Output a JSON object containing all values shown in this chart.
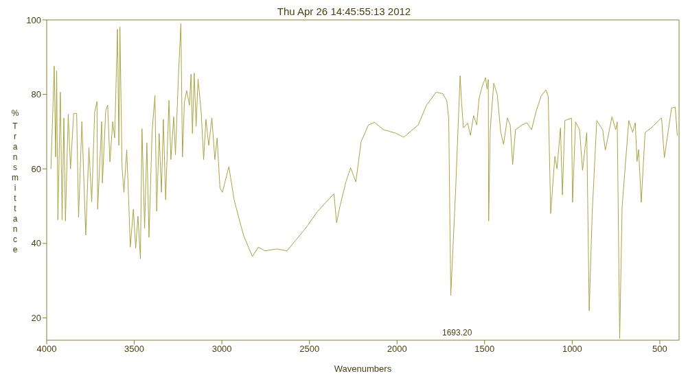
{
  "chart_data": {
    "type": "line",
    "title": "Thu Apr 26 14:45:55:13 2012",
    "xlabel": "Wavenumbers",
    "ylabel": "% Transmittance",
    "x": [
      3976,
      3967,
      3957,
      3949,
      3943,
      3936,
      3922,
      3912,
      3902,
      3893,
      3877,
      3864,
      3846,
      3829,
      3818,
      3799,
      3777,
      3759,
      3743,
      3726,
      3713,
      3709,
      3686,
      3682,
      3663,
      3652,
      3639,
      3623,
      3612,
      3596,
      3588,
      3582,
      3570,
      3559,
      3543,
      3532,
      3523,
      3505,
      3492,
      3479,
      3465,
      3456,
      3441,
      3428,
      3416,
      3398,
      3382,
      3372,
      3358,
      3345,
      3334,
      3321,
      3302,
      3291,
      3275,
      3265,
      3247,
      3234,
      3225,
      3214,
      3201,
      3185,
      3176,
      3168,
      3158,
      3147,
      3136,
      3118,
      3104,
      3091,
      3075,
      3057,
      3040,
      3027,
      3011,
      2997,
      2960,
      2930,
      2902,
      2875,
      2826,
      2792,
      2754,
      2686,
      2629,
      2576,
      2523,
      2455,
      2387,
      2360,
      2345,
      2326,
      2292,
      2265,
      2235,
      2205,
      2163,
      2129,
      2076,
      2008,
      1962,
      1879,
      1833,
      1777,
      1739,
      1716,
      1705,
      1693.2,
      1665,
      1640,
      1631,
      1621,
      1597,
      1581,
      1563,
      1545,
      1532,
      1515,
      1495,
      1486,
      1479,
      1477,
      1468,
      1448,
      1428,
      1408,
      1392,
      1370,
      1354,
      1340,
      1324,
      1286,
      1259,
      1232,
      1205,
      1178,
      1150,
      1137,
      1123,
      1099,
      1087,
      1067,
      1056,
      1042,
      1004,
      998,
      981,
      958,
      941,
      917,
      903,
      886,
      860,
      826,
      811,
      773,
      752,
      743,
      729,
      715,
      677,
      655,
      640,
      630,
      621,
      606,
      584,
      549,
      490,
      474,
      433,
      412,
      400
    ],
    "series": [
      {
        "color": "#a9a444",
        "values": [
          60,
          72.7,
          87.6,
          63.2,
          86.3,
          46.3,
          80.6,
          46.3,
          73.7,
          46,
          74.6,
          60,
          74.9,
          74.9,
          47,
          72.7,
          42.2,
          65.7,
          51.1,
          75.2,
          78.1,
          49.2,
          72.7,
          56.2,
          75.6,
          77.1,
          61.9,
          72.7,
          68.3,
          97.5,
          66.3,
          98.1,
          60.6,
          53.7,
          65.1,
          51.7,
          39,
          49.2,
          38.7,
          47.3,
          35.9,
          70.8,
          44.1,
          67,
          41.6,
          70.2,
          79.7,
          48.6,
          69.5,
          53.7,
          73.3,
          51.7,
          78.4,
          62.5,
          74,
          63.8,
          86,
          99,
          63.2,
          77.8,
          81,
          77.1,
          85.4,
          69.5,
          85.7,
          71.4,
          84.1,
          75.2,
          62.5,
          73.3,
          66.3,
          73.7,
          62.5,
          68.3,
          54.9,
          53.7,
          60.6,
          51.7,
          46.6,
          42,
          36.5,
          39,
          38,
          38.5,
          38,
          41,
          44,
          48.5,
          52,
          53.3,
          45.5,
          50,
          56.5,
          60.3,
          56.5,
          67.3,
          71.8,
          72.5,
          70.5,
          69.6,
          68.5,
          71.8,
          77,
          80.6,
          80.2,
          78.3,
          73.5,
          26,
          55,
          85,
          77.5,
          71,
          72.3,
          69,
          74.3,
          71.8,
          78.8,
          82,
          84.5,
          81.4,
          84,
          46,
          70.5,
          83,
          80,
          69.8,
          66.6,
          73.7,
          71.8,
          61.2,
          70.5,
          71.8,
          72.4,
          70.5,
          75.6,
          79.5,
          81.2,
          79.5,
          48,
          63.4,
          60,
          71,
          53,
          73,
          73.6,
          51,
          72.6,
          70.5,
          59.6,
          69.8,
          21.9,
          48,
          73,
          70.5,
          65,
          74,
          70.5,
          72.6,
          14.5,
          50,
          73,
          69.8,
          72.4,
          62,
          65.2,
          51,
          69.8,
          71,
          73.7,
          63,
          76.3,
          76.6,
          69
        ]
      }
    ],
    "xlim": [
      4000,
      390
    ],
    "ylim": [
      14,
      100
    ],
    "xticks": [
      4000,
      3500,
      3000,
      2500,
      2000,
      1500,
      1000,
      500
    ],
    "yticks": [
      20,
      40,
      60,
      80,
      100
    ],
    "annotations": [
      "1693.20"
    ]
  }
}
